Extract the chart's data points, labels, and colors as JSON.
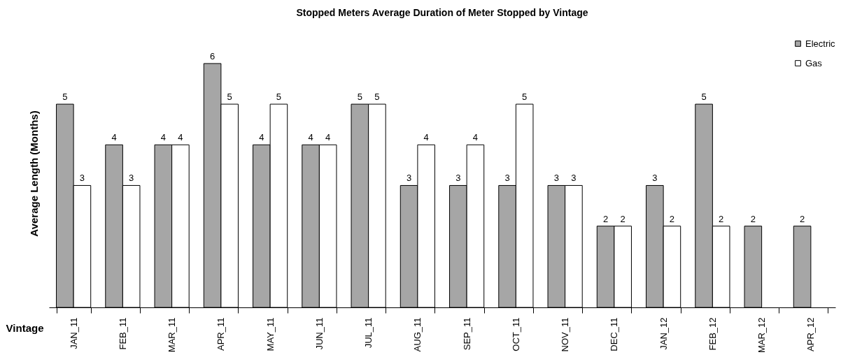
{
  "chart_data": {
    "type": "bar",
    "title": "Stopped Meters Average Duration of Meter Stopped by Vintage",
    "xlabel": "Vintage",
    "ylabel": "Average Length (Months)",
    "categories": [
      "JAN_11",
      "FEB_11",
      "MAR_11",
      "APR_11",
      "MAY_11",
      "JUN_11",
      "JUL_11",
      "AUG_11",
      "SEP_11",
      "OCT_11",
      "NOV_11",
      "DEC_11",
      "JAN_12",
      "FEB_12",
      "MAR_12",
      "APR_12"
    ],
    "series": [
      {
        "name": "Electric",
        "color": "#a6a6a6",
        "values": [
          5,
          4,
          4,
          6,
          4,
          4,
          5,
          3,
          3,
          3,
          3,
          2,
          3,
          5,
          2,
          2
        ]
      },
      {
        "name": "Gas",
        "color": "#ffffff",
        "values": [
          3,
          3,
          4,
          5,
          5,
          4,
          5,
          4,
          4,
          5,
          3,
          2,
          2,
          2,
          null,
          null
        ]
      }
    ],
    "data_labels": true,
    "legend": "top right",
    "grid": false
  }
}
